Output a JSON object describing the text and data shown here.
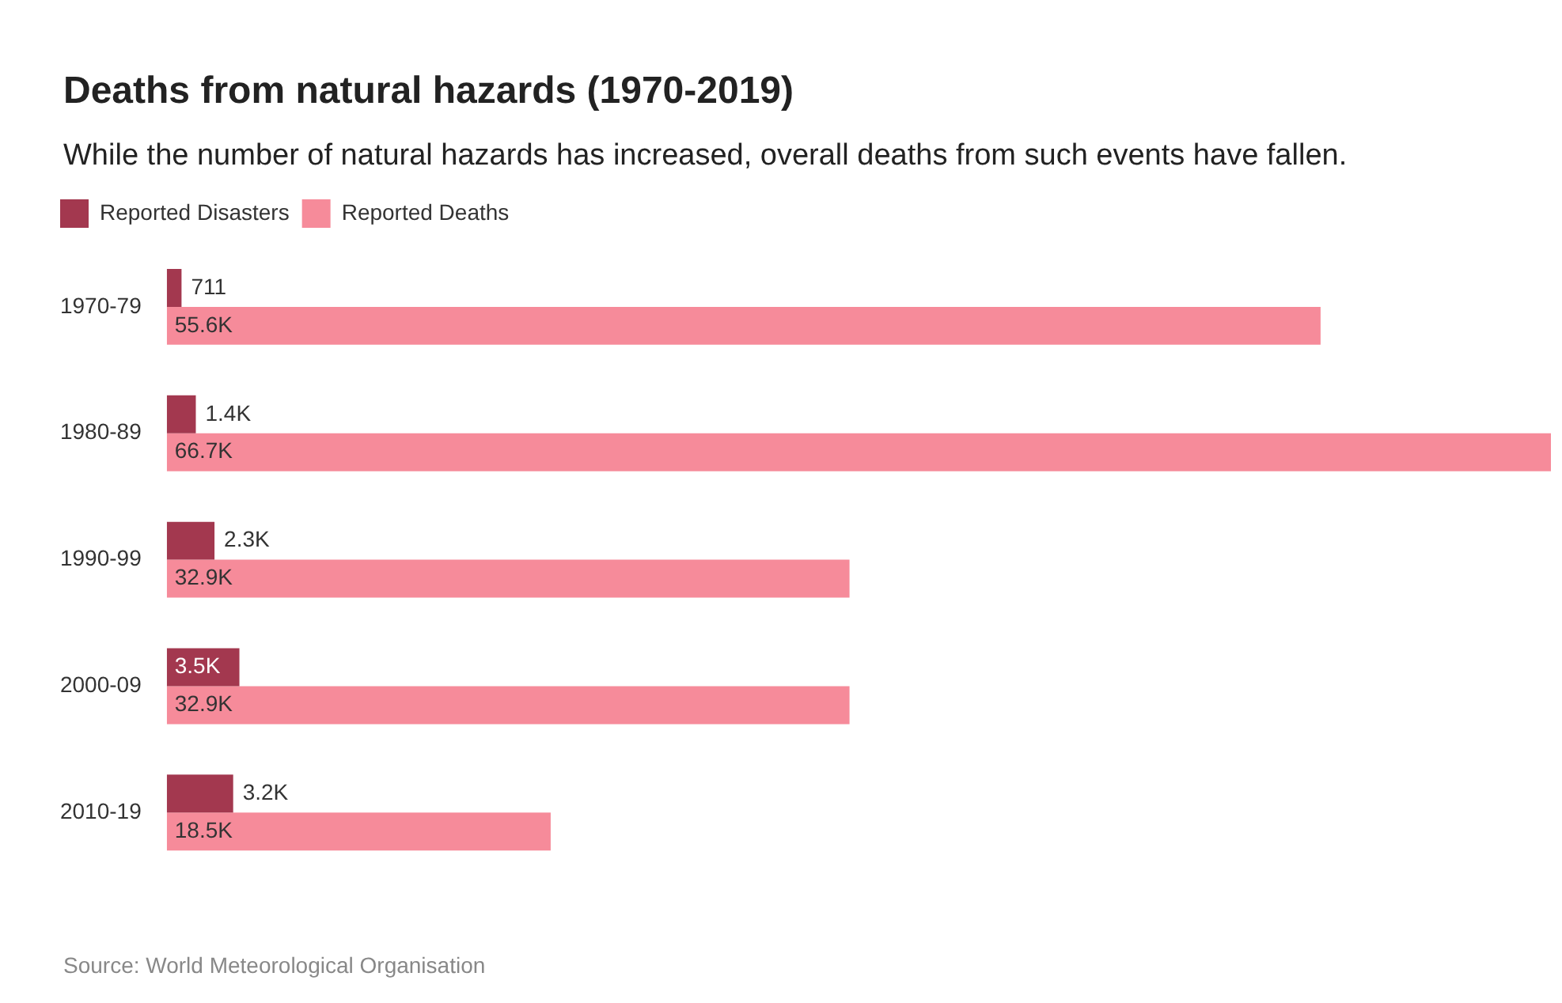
{
  "chart_data": {
    "type": "bar",
    "orientation": "horizontal",
    "title": "Deaths from natural hazards (1970-2019)",
    "subtitle": "While the number of natural hazards has increased, overall deaths from such events have fallen.",
    "categories": [
      "1970-79",
      "1980-89",
      "1990-99",
      "2000-09",
      "2010-19"
    ],
    "series": [
      {
        "name": "Reported Disasters",
        "color": "#a3384f",
        "values": [
          711,
          1400,
          2300,
          3500,
          3200
        ],
        "value_labels": [
          "711",
          "1.4K",
          "2.3K",
          "3.5K",
          "3.2K"
        ]
      },
      {
        "name": "Reported Deaths",
        "color": "#f68b9a",
        "values": [
          55600,
          66700,
          32900,
          32900,
          18500
        ],
        "value_labels": [
          "55.6K",
          "66.7K",
          "32.9K",
          "32.9K",
          "18.5K"
        ]
      }
    ],
    "legend": "top left",
    "tick_labels": "y",
    "annotations": [
      "Source: World Meteorological Organisation"
    ]
  }
}
